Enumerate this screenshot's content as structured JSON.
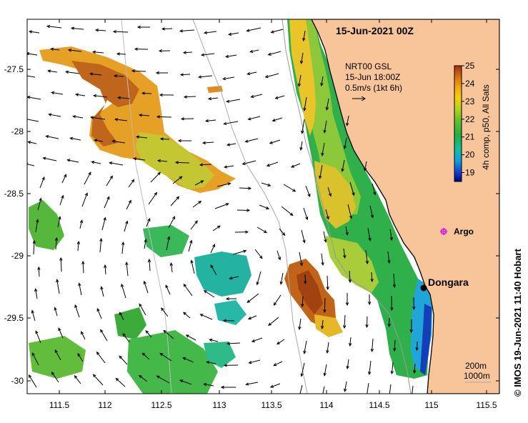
{
  "map": {
    "title": "15-Jun-2021 00Z",
    "current_legend": {
      "line1": "NRT00 GSL",
      "line2": "15-Jun 18:00Z",
      "line3": "0.5m/s (1kt 6h)"
    },
    "colorbar": {
      "label": "4h comp, p50, All Sats",
      "ticks": [
        "25",
        "24",
        "23",
        "22",
        "21",
        "20",
        "19"
      ],
      "min": 18.5,
      "max": 25
    },
    "lon_ticks": [
      "111.5",
      "112",
      "112.5",
      "113",
      "113.5",
      "114",
      "114.5",
      "115",
      "115.5"
    ],
    "lat_ticks": [
      "-27.5",
      "-28",
      "-28.5",
      "-29",
      "-29.5",
      "-30"
    ],
    "places": [
      {
        "name": "Dongara",
        "marker": "black-dot"
      },
      {
        "name": "Argo",
        "marker": "magenta-float"
      }
    ],
    "isobaths": {
      "label1": "200m",
      "label2": "1000m"
    },
    "credit": "© IMOS 19-Jun-2021 11:40 Hobart",
    "colors": {
      "land": "#f8c59a",
      "coast": "#000000",
      "argo": "#dd22dd",
      "warm": "#b35a1b",
      "cool": "#1f7fc9"
    }
  }
}
